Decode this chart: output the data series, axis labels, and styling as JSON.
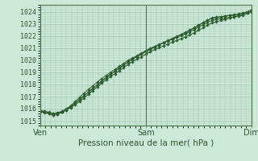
{
  "xlabel": "Pression niveau de la mer( hPa )",
  "bg_color": "#cce8d8",
  "grid_color": "#99c4aa",
  "line_color": "#2d5e30",
  "marker_color": "#2d5e30",
  "yticks": [
    1015,
    1016,
    1017,
    1018,
    1019,
    1020,
    1021,
    1022,
    1023,
    1024
  ],
  "ylim": [
    1014.6,
    1024.6
  ],
  "xtick_labels": [
    "Ven",
    "Sam",
    "Dim"
  ],
  "n_points": 49,
  "series1": [
    1015.8,
    1015.75,
    1015.65,
    1015.6,
    1015.65,
    1015.75,
    1015.9,
    1016.1,
    1016.35,
    1016.6,
    1016.9,
    1017.2,
    1017.5,
    1017.8,
    1018.1,
    1018.4,
    1018.65,
    1018.9,
    1019.15,
    1019.4,
    1019.65,
    1019.9,
    1020.1,
    1020.3,
    1020.5,
    1020.7,
    1020.9,
    1021.05,
    1021.2,
    1021.35,
    1021.5,
    1021.65,
    1021.8,
    1021.95,
    1022.1,
    1022.3,
    1022.5,
    1022.7,
    1022.9,
    1023.1,
    1023.2,
    1023.3,
    1023.4,
    1023.5,
    1023.6,
    1023.7,
    1023.8,
    1023.9,
    1024.0
  ],
  "series2": [
    1015.85,
    1015.8,
    1015.7,
    1015.6,
    1015.65,
    1015.8,
    1016.0,
    1016.25,
    1016.6,
    1016.95,
    1017.3,
    1017.6,
    1017.9,
    1018.2,
    1018.5,
    1018.75,
    1019.0,
    1019.25,
    1019.5,
    1019.75,
    1020.0,
    1020.2,
    1020.4,
    1020.6,
    1020.8,
    1021.0,
    1021.15,
    1021.3,
    1021.45,
    1021.6,
    1021.75,
    1021.9,
    1022.05,
    1022.2,
    1022.35,
    1022.55,
    1022.75,
    1022.95,
    1023.15,
    1023.3,
    1023.4,
    1023.45,
    1023.5,
    1023.55,
    1023.6,
    1023.65,
    1023.75,
    1023.9,
    1024.05
  ],
  "series3": [
    1015.8,
    1015.7,
    1015.6,
    1015.5,
    1015.55,
    1015.7,
    1015.9,
    1016.15,
    1016.45,
    1016.75,
    1017.05,
    1017.35,
    1017.65,
    1017.95,
    1018.25,
    1018.55,
    1018.82,
    1019.08,
    1019.35,
    1019.6,
    1019.85,
    1020.08,
    1020.3,
    1020.52,
    1020.72,
    1020.92,
    1021.1,
    1021.28,
    1021.45,
    1021.62,
    1021.78,
    1021.95,
    1022.12,
    1022.3,
    1022.48,
    1022.68,
    1022.9,
    1023.1,
    1023.3,
    1023.48,
    1023.55,
    1023.6,
    1023.65,
    1023.7,
    1023.75,
    1023.82,
    1023.9,
    1024.0,
    1024.15
  ],
  "series4": [
    1015.75,
    1015.68,
    1015.58,
    1015.5,
    1015.55,
    1015.7,
    1015.92,
    1016.18,
    1016.48,
    1016.78,
    1017.08,
    1017.38,
    1017.68,
    1017.98,
    1018.28,
    1018.58,
    1018.85,
    1019.11,
    1019.38,
    1019.63,
    1019.88,
    1020.11,
    1020.33,
    1020.55,
    1020.75,
    1020.95,
    1021.13,
    1021.31,
    1021.48,
    1021.65,
    1021.81,
    1021.98,
    1022.15,
    1022.33,
    1022.51,
    1022.71,
    1022.93,
    1023.13,
    1023.33,
    1023.51,
    1023.58,
    1023.63,
    1023.68,
    1023.73,
    1023.78,
    1023.85,
    1023.93,
    1024.03,
    1024.18
  ]
}
